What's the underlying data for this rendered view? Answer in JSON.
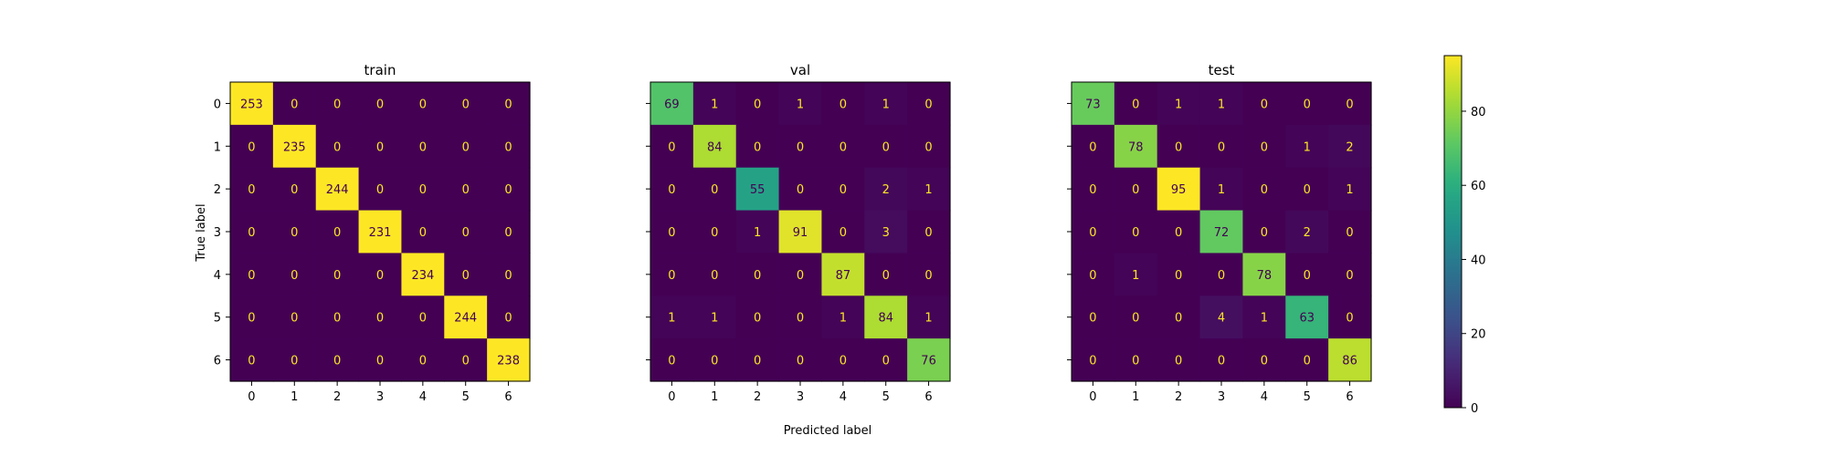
{
  "figure": {
    "xlabel": "Predicted label",
    "ylabel": "True label"
  },
  "chart_data": {
    "type": "heatmap",
    "colormap": "viridis",
    "vmin": 0,
    "vmax": 95,
    "labels": [
      "0",
      "1",
      "2",
      "3",
      "4",
      "5",
      "6"
    ],
    "colorbar_ticks": [
      0,
      20,
      40,
      60,
      80
    ],
    "panels": [
      {
        "title": "train",
        "matrix": [
          [
            253,
            0,
            0,
            0,
            0,
            0,
            0
          ],
          [
            0,
            235,
            0,
            0,
            0,
            0,
            0
          ],
          [
            0,
            0,
            244,
            0,
            0,
            0,
            0
          ],
          [
            0,
            0,
            0,
            231,
            0,
            0,
            0
          ],
          [
            0,
            0,
            0,
            0,
            234,
            0,
            0
          ],
          [
            0,
            0,
            0,
            0,
            0,
            244,
            0
          ],
          [
            0,
            0,
            0,
            0,
            0,
            0,
            238
          ]
        ]
      },
      {
        "title": "val",
        "matrix": [
          [
            69,
            1,
            0,
            1,
            0,
            1,
            0
          ],
          [
            0,
            84,
            0,
            0,
            0,
            0,
            0
          ],
          [
            0,
            0,
            55,
            0,
            0,
            2,
            1
          ],
          [
            0,
            0,
            1,
            91,
            0,
            3,
            0
          ],
          [
            0,
            0,
            0,
            0,
            87,
            0,
            0
          ],
          [
            1,
            1,
            0,
            0,
            1,
            84,
            1
          ],
          [
            0,
            0,
            0,
            0,
            0,
            0,
            76
          ]
        ]
      },
      {
        "title": "test",
        "matrix": [
          [
            73,
            0,
            1,
            1,
            0,
            0,
            0
          ],
          [
            0,
            78,
            0,
            0,
            0,
            1,
            2
          ],
          [
            0,
            0,
            95,
            1,
            0,
            0,
            1
          ],
          [
            0,
            0,
            0,
            72,
            0,
            2,
            0
          ],
          [
            0,
            1,
            0,
            0,
            78,
            0,
            0
          ],
          [
            0,
            0,
            0,
            4,
            1,
            63,
            0
          ],
          [
            0,
            0,
            0,
            0,
            0,
            0,
            86
          ]
        ]
      }
    ]
  }
}
